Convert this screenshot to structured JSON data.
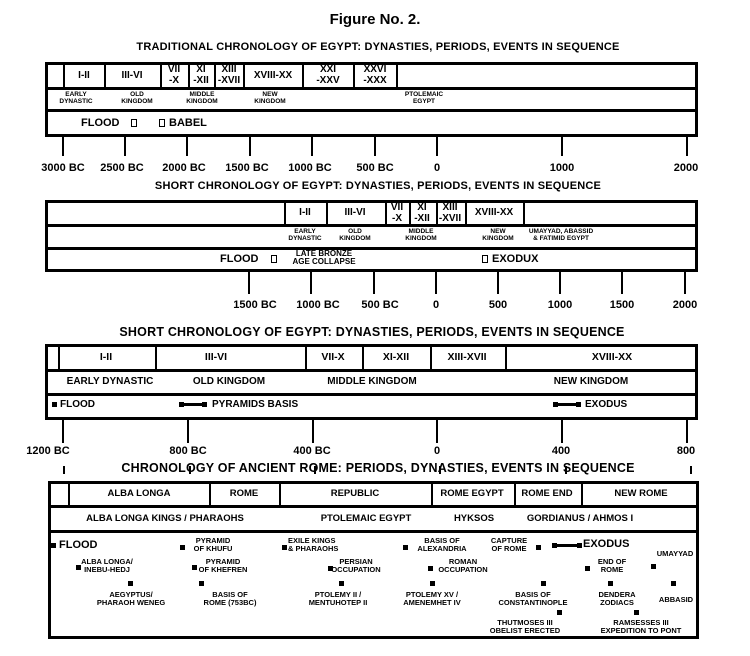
{
  "figure_title": "Figure No. 2.",
  "section1": {
    "title": "TRADITIONAL CHRONOLOGY OF EGYPT: DYNASTIES, PERIODS, EVENTS IN SEQUENCE",
    "dynasties": [
      "I-II",
      "III-VI",
      "VII\n-X",
      "XI\n-XII",
      "XIII\n-XVII",
      "XVIII-XX",
      "XXI\n-XXV",
      "XXVI\n-XXX"
    ],
    "periods": [
      "EARLY\nDYNASTIC",
      "OLD\nKINGDOM",
      "MIDDLE\nKINGDOM",
      "NEW\nKINGDOM",
      "PTOLEMAIC\nEGYPT"
    ],
    "events": [
      "FLOOD",
      "BABEL"
    ],
    "ticks": [
      "3000 BC",
      "2500 BC",
      "2000 BC",
      "1500 BC",
      "1000 BC",
      "500 BC",
      "0",
      "1000",
      "2000"
    ]
  },
  "section2": {
    "title": "SHORT CHRONOLOGY OF EGYPT: DYNASTIES, PERIODS, EVENTS IN SEQUENCE",
    "dynasties": [
      "I-II",
      "III-VI",
      "VII\n-X",
      "XI\n-XII",
      "XIII\n-XVII",
      "XVIII-XX"
    ],
    "periods": [
      "EARLY\nDYNASTIC",
      "OLD\nKINGDOM",
      "MIDDLE\nKINGDOM",
      "NEW\nKINGDOM",
      "UMAYYAD, ABASSID\n& FATIMID EGYPT"
    ],
    "events": [
      "FLOOD",
      "LATE BRONZE\nAGE COLLAPSE",
      "EXODUX"
    ],
    "ticks": [
      "1500 BC",
      "1000 BC",
      "500 BC",
      "0",
      "500",
      "1000",
      "1500",
      "2000"
    ]
  },
  "section3": {
    "title": "SHORT CHRONOLOGY OF EGYPT: DYNASTIES, PERIODS, EVENTS IN SEQUENCE",
    "dynasties": [
      "I-II",
      "III-VI",
      "VII-X",
      "XI-XII",
      "XIII-XVII",
      "XVIII-XX"
    ],
    "periods": [
      "EARLY DYNASTIC",
      "OLD KINGDOM",
      "MIDDLE KINGDOM",
      "NEW KINGDOM"
    ],
    "events": [
      "FLOOD",
      "PYRAMIDS BASIS",
      "EXODUS"
    ],
    "ticks": [
      "1200 BC",
      "800 BC",
      "400 BC",
      "0",
      "400",
      "800"
    ]
  },
  "section4": {
    "title": "CHRONOLOGY OF ANCIENT ROME: PERIODS, DYNASTIES, EVENTS IN SEQUENCE",
    "periods": [
      "ALBA LONGA",
      "ROME",
      "REPUBLIC",
      "ROME EGYPT",
      "ROME END",
      "NEW ROME"
    ],
    "dynasties": [
      "ALBA LONGA KINGS / PHARAOHS",
      "PTOLEMAIC EGYPT",
      "HYKSOS",
      "GORDIANUS / AHMOS I"
    ],
    "events": {
      "flood": "FLOOD",
      "khufu": "PYRAMID\nOF KHUFU",
      "exile": "EXILE KINGS\n& PHARAOHS",
      "alexandria": "BASIS OF\nALEXANDRIA",
      "capture": "CAPTURE\nOF ROME",
      "exodus": "EXODUS",
      "umayyad": "UMAYYAD",
      "alba": "ALBA LONGA/\nINEBU-HEDJ",
      "khefren": "PYRAMID\nOF KHEFREN",
      "persian": "PERSIAN\nOCCUPATION",
      "roman": "ROMAN\nOCCUPATION",
      "endrome": "END OF\nROME",
      "aegyptus": "AEGYPTUS/\nPHARAOH WENEG",
      "basisrome": "BASIS OF\nROME (753BC)",
      "ptolemy2": "PTOLEMY II /\nMENTUHOTEP II",
      "ptolemy15": "PTOLEMY XV /\nAMENEMHET IV",
      "constantinople": "BASIS OF\nCONSTANTINOPLE",
      "dendera": "DENDERA\nZODIACS",
      "abbasid": "ABBASID",
      "thutmoses": "THUTMOSES III\nOBELIST ERECTED",
      "ramsesses": "RAMSESSES III\nEXPEDITION TO PONT"
    }
  }
}
